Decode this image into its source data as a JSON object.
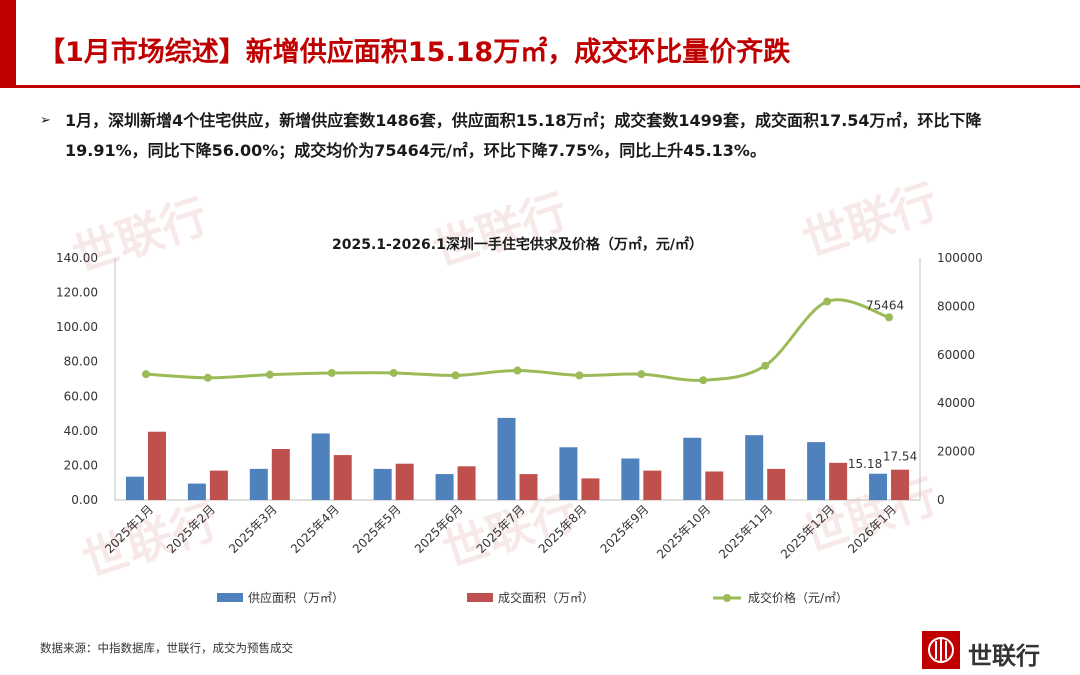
{
  "header": {
    "title": "【1月市场综述】新增供应面积15.18万㎡，成交环比量价齐跌"
  },
  "bullet": {
    "symbol": "➢",
    "text": "1月，深圳新增4个住宅供应，新增供应套数1486套，供应面积15.18万㎡；成交套数1499套，成交面积17.54万㎡，环比下降19.91%，同比下降56.00%；成交均价为75464元/㎡，环比下降7.75%，同比上升45.13%。"
  },
  "watermark": {
    "text": "世联行"
  },
  "chart_data": {
    "type": "bar+line",
    "title": "2025.1-2026.1深圳一手住宅供求及价格（万㎡，元/㎡）",
    "categories": [
      "2025年1月",
      "2025年2月",
      "2025年3月",
      "2025年4月",
      "2025年5月",
      "2025年6月",
      "2025年7月",
      "2025年8月",
      "2025年9月",
      "2025年10月",
      "2025年11月",
      "2025年12月",
      "2026年1月"
    ],
    "series": [
      {
        "name": "供应面积（万㎡）",
        "type": "bar",
        "axis": "left",
        "color": "#4f81bd",
        "values": [
          13.5,
          9.5,
          18.0,
          38.5,
          18.0,
          15.0,
          47.5,
          30.5,
          24.0,
          36.0,
          37.5,
          33.5,
          15.18
        ]
      },
      {
        "name": "成交面积（万㎡）",
        "type": "bar",
        "axis": "left",
        "color": "#c0504d",
        "values": [
          39.5,
          17.0,
          29.5,
          26.0,
          21.0,
          19.5,
          15.0,
          12.5,
          17.0,
          16.5,
          18.0,
          21.5,
          17.54
        ]
      },
      {
        "name": "成交价格（元/㎡）",
        "type": "line",
        "axis": "right",
        "color": "#9bbb59",
        "values": [
          52000,
          50500,
          51800,
          52500,
          52500,
          51500,
          53500,
          51500,
          52000,
          49500,
          55500,
          82000,
          75464
        ]
      }
    ],
    "left_axis": {
      "min": 0,
      "max": 140,
      "ticks": [
        "0.00",
        "20.00",
        "40.00",
        "60.00",
        "80.00",
        "100.00",
        "120.00",
        "140.00"
      ]
    },
    "right_axis": {
      "min": 0,
      "max": 100000,
      "ticks": [
        "0",
        "20000",
        "40000",
        "60000",
        "80000",
        "100000"
      ]
    },
    "data_labels": [
      "15.18",
      "17.54",
      "75464"
    ],
    "legend_position": "bottom",
    "grid": false
  },
  "footer": {
    "source": "数据来源：中指数据库，世联行，成交为预售成交",
    "logo_text": "世联行"
  }
}
